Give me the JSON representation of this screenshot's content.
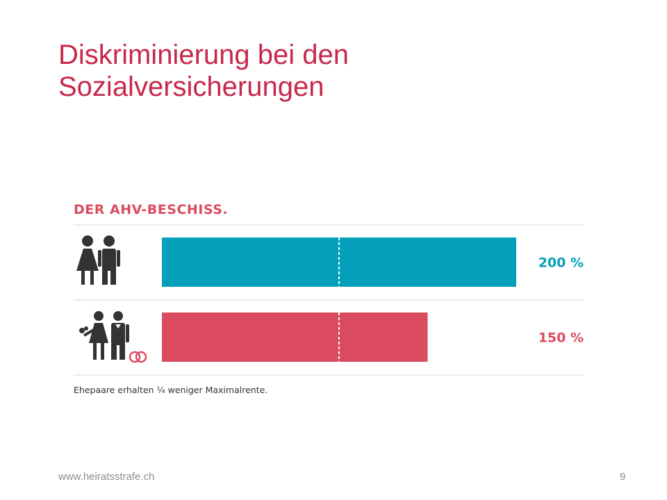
{
  "slide": {
    "title_line1": "Diskriminierung bei den",
    "title_line2": "Sozialversicherungen",
    "footer_url": "www.heiratsstrafe.ch",
    "page_number": "9"
  },
  "colors": {
    "title": "#c8284a",
    "unmarried_bar": "#049fba",
    "married_bar": "#db4b5f",
    "heading": "#db4b5f",
    "text": "#333333",
    "divider": "#d9d9d9"
  },
  "chart_data": {
    "type": "bar",
    "orientation": "horizontal",
    "title": "DER AHV-BESCHISS.",
    "categories": [
      "unmarried couple",
      "married couple"
    ],
    "category_icons": [
      "couple-icon",
      "married-couple-with-rings-icon"
    ],
    "values": [
      200,
      150
    ],
    "value_labels": [
      "200 %",
      "150 %"
    ],
    "unit": "%",
    "reference_line": 100,
    "xlim": [
      0,
      200
    ],
    "grid": false,
    "legend": "none",
    "footnote": "Ehepaare erhalten ¼ weniger Maximalrente."
  }
}
